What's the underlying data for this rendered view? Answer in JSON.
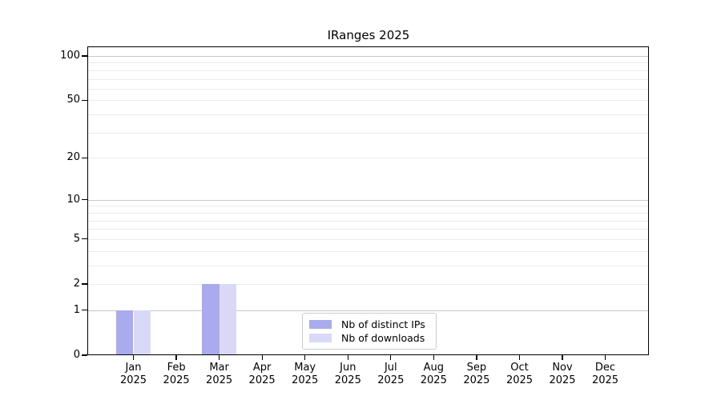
{
  "chart_data": {
    "type": "bar",
    "title": "IRanges 2025",
    "categories": [
      "Jan",
      "Feb",
      "Mar",
      "Apr",
      "May",
      "Jun",
      "Jul",
      "Aug",
      "Sep",
      "Oct",
      "Nov",
      "Dec"
    ],
    "x_sublabel": "2025",
    "series": [
      {
        "name": "Nb of distinct IPs",
        "color": "#aaaaee",
        "values": [
          1,
          0,
          2,
          0,
          0,
          0,
          0,
          0,
          0,
          0,
          0,
          0
        ]
      },
      {
        "name": "Nb of downloads",
        "color": "#d9d9f7",
        "values": [
          1,
          0,
          2,
          0,
          0,
          0,
          0,
          0,
          0,
          0,
          0,
          0
        ]
      }
    ],
    "y_scale": "log1p",
    "ylim": [
      0,
      115
    ],
    "y_ticks": [
      0,
      1,
      2,
      5,
      10,
      20,
      50,
      100
    ],
    "y_major_grid": [
      1,
      10,
      100
    ],
    "y_minor_grid": [
      2,
      3,
      4,
      5,
      6,
      7,
      8,
      9,
      20,
      30,
      40,
      50,
      60,
      70,
      80,
      90
    ],
    "grid": "horizontal",
    "legend_position": "lower center",
    "colors": {
      "grid_major": "#c8c8c8",
      "grid_minor": "#ececec",
      "axis": "#000000"
    }
  }
}
